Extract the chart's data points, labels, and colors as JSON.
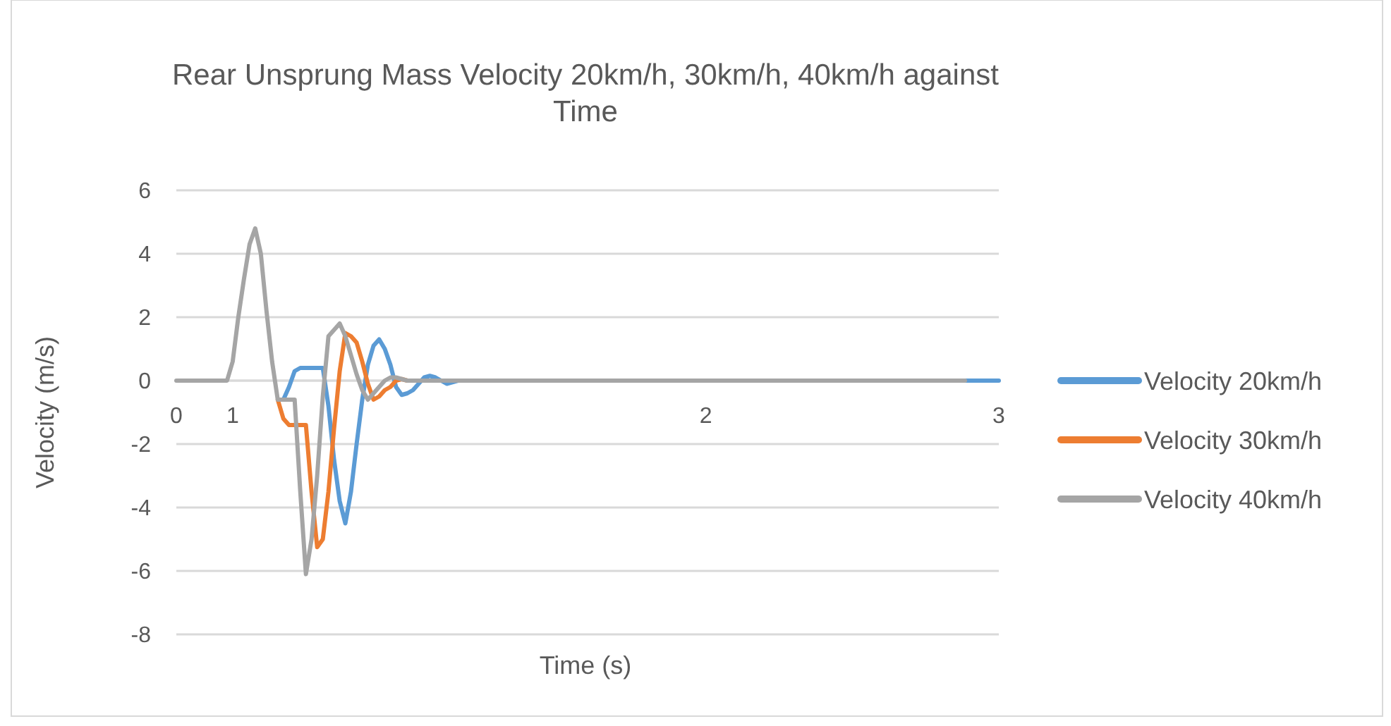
{
  "chart_data": {
    "type": "line",
    "title": "Rear Unsprung Mass Velocity 20km/h, 30km/h, 40km/h against Time",
    "xlabel": "Time (s)",
    "ylabel": "Velocity (m/s)",
    "categories": [
      "0",
      null,
      null,
      null,
      null,
      null,
      null,
      null,
      null,
      null,
      "1",
      null,
      null,
      null,
      null,
      null,
      null,
      null,
      null,
      null,
      null,
      null,
      null,
      null,
      null,
      null,
      null,
      null,
      null,
      null,
      null,
      null,
      null,
      null,
      null,
      null,
      null,
      null,
      null,
      null,
      null,
      null,
      null,
      null,
      null,
      null,
      null,
      null,
      null,
      null,
      null,
      null,
      null,
      null,
      null,
      null,
      null,
      null,
      null,
      null,
      null,
      null,
      null,
      null,
      null,
      null,
      null,
      null,
      null,
      null,
      null,
      null,
      null,
      null,
      null,
      null,
      null,
      null,
      null,
      null,
      null,
      null,
      null,
      null,
      null,
      null,
      null,
      null,
      null,
      null,
      null,
      null,
      null,
      null,
      "2",
      null,
      null,
      null,
      null,
      null,
      null,
      null,
      null,
      null,
      null,
      null,
      null,
      null,
      null,
      null,
      null,
      null,
      null,
      null,
      null,
      null,
      null,
      null,
      null,
      null,
      null,
      null,
      null,
      null,
      null,
      null,
      null,
      null,
      null,
      null,
      null,
      null,
      null,
      null,
      null,
      null,
      null,
      null,
      null,
      null,
      null,
      null,
      null,
      null,
      null,
      null,
      "3"
    ],
    "series": [
      {
        "name": "Velocity 20km/h",
        "color": "#5b9bd5",
        "values": [
          null,
          null,
          null,
          null,
          null,
          null,
          null,
          null,
          null,
          null,
          null,
          null,
          null,
          null,
          null,
          null,
          null,
          null,
          null,
          -0.6,
          -0.2,
          0.3,
          0.4,
          0.4,
          0.4,
          0.4,
          0.4,
          -0.8,
          -2.5,
          -3.8,
          -4.5,
          -3.5,
          -2,
          -0.6,
          0.5,
          1.1,
          1.3,
          1,
          0.5,
          -0.2,
          -0.45,
          -0.4,
          -0.3,
          -0.1,
          0.1,
          0.15,
          0.1,
          0,
          -0.1,
          -0.05,
          0,
          0,
          null,
          null,
          null,
          null,
          null,
          null,
          null,
          null,
          null,
          null,
          null,
          null,
          null,
          null,
          null,
          null,
          null,
          null,
          null,
          null,
          null,
          null,
          null,
          null,
          null,
          null,
          null,
          null,
          null,
          null,
          null,
          null,
          null,
          null,
          null,
          null,
          null,
          null,
          null,
          null,
          null,
          null,
          null,
          null,
          null,
          null,
          null,
          null,
          null,
          null,
          null,
          null,
          null,
          null,
          null,
          null,
          null,
          null,
          null,
          null,
          null,
          null,
          null,
          null,
          null,
          null,
          null,
          null,
          null,
          null,
          null,
          null,
          null,
          null,
          null,
          null,
          null,
          null,
          null,
          null,
          null,
          null,
          null,
          null,
          null,
          null,
          null,
          null,
          0,
          0,
          0,
          0,
          0,
          0,
          0
        ]
      },
      {
        "name": "Velocity 30km/h",
        "color": "#ed7d31",
        "values": [
          null,
          null,
          null,
          null,
          null,
          null,
          null,
          null,
          null,
          null,
          null,
          null,
          null,
          null,
          null,
          null,
          null,
          null,
          -0.6,
          -1.2,
          -1.4,
          -1.4,
          -1.4,
          -1.4,
          -3.5,
          -5.25,
          -5,
          -3.5,
          -1.5,
          0.3,
          1.5,
          1.4,
          1.2,
          0.6,
          -0.1,
          -0.6,
          -0.5,
          -0.3,
          -0.2,
          0,
          0.05,
          0,
          null,
          null,
          null,
          null,
          null,
          null,
          null,
          null,
          null,
          null,
          null,
          null,
          null,
          null,
          null,
          null,
          null,
          null,
          null,
          null,
          null,
          null,
          null,
          null,
          null,
          null,
          null,
          null,
          null,
          null,
          null,
          null,
          null,
          null,
          null,
          null,
          null,
          null,
          null,
          null,
          null,
          null,
          null,
          null,
          null,
          null,
          null,
          null,
          null,
          null,
          null,
          null,
          null,
          null,
          null,
          null,
          null,
          null,
          null,
          null,
          null,
          null,
          null,
          null,
          null,
          null,
          null,
          null,
          null,
          null,
          null,
          null,
          null,
          null,
          null,
          null,
          null,
          null,
          null,
          null,
          null,
          null,
          null,
          null,
          null,
          null,
          null,
          null,
          null,
          null,
          null,
          null,
          null,
          null,
          null,
          null,
          null,
          null,
          null,
          null,
          null,
          null,
          null,
          null,
          null
        ]
      },
      {
        "name": "Velocity 40km/h",
        "color": "#a5a5a5",
        "values": [
          0,
          0,
          0,
          0,
          0,
          0,
          0,
          0,
          0,
          0,
          0.6,
          2,
          3.2,
          4.3,
          4.8,
          4,
          2.2,
          0.6,
          -0.6,
          -0.6,
          -0.6,
          -0.6,
          -3.5,
          -6.1,
          -5,
          -3,
          -0.5,
          1.4,
          1.6,
          1.8,
          1.4,
          0.8,
          0.2,
          -0.3,
          -0.6,
          -0.4,
          -0.2,
          0,
          0.1,
          0.1,
          0.05,
          0,
          0,
          0,
          0,
          0,
          0,
          0,
          0,
          0,
          0,
          0,
          0,
          0,
          0,
          0,
          0,
          0,
          0,
          0,
          0,
          0,
          0,
          0,
          0,
          0,
          0,
          0,
          0,
          0,
          0,
          0,
          0,
          0,
          0,
          0,
          0,
          0,
          0,
          0,
          0,
          0,
          0,
          0,
          0,
          0,
          0,
          0,
          0,
          0,
          0,
          0,
          0,
          0,
          0,
          0,
          0,
          0,
          0,
          0,
          0,
          0,
          0,
          0,
          0,
          0,
          0,
          0,
          0,
          0,
          0,
          0,
          0,
          0,
          0,
          0,
          0,
          0,
          0,
          0,
          0,
          0,
          0,
          0,
          0,
          0,
          0,
          0,
          0,
          0,
          0,
          0,
          0,
          0,
          0,
          0,
          0,
          0,
          0,
          0,
          0,
          null,
          null,
          null,
          null,
          null,
          null
        ]
      }
    ],
    "ylim": [
      -8,
      6
    ],
    "yticks": [
      -8,
      -6,
      -4,
      -2,
      0,
      2,
      4,
      6
    ],
    "grid": "y",
    "legend": "right",
    "marker": "none",
    "line_style": "solid"
  }
}
